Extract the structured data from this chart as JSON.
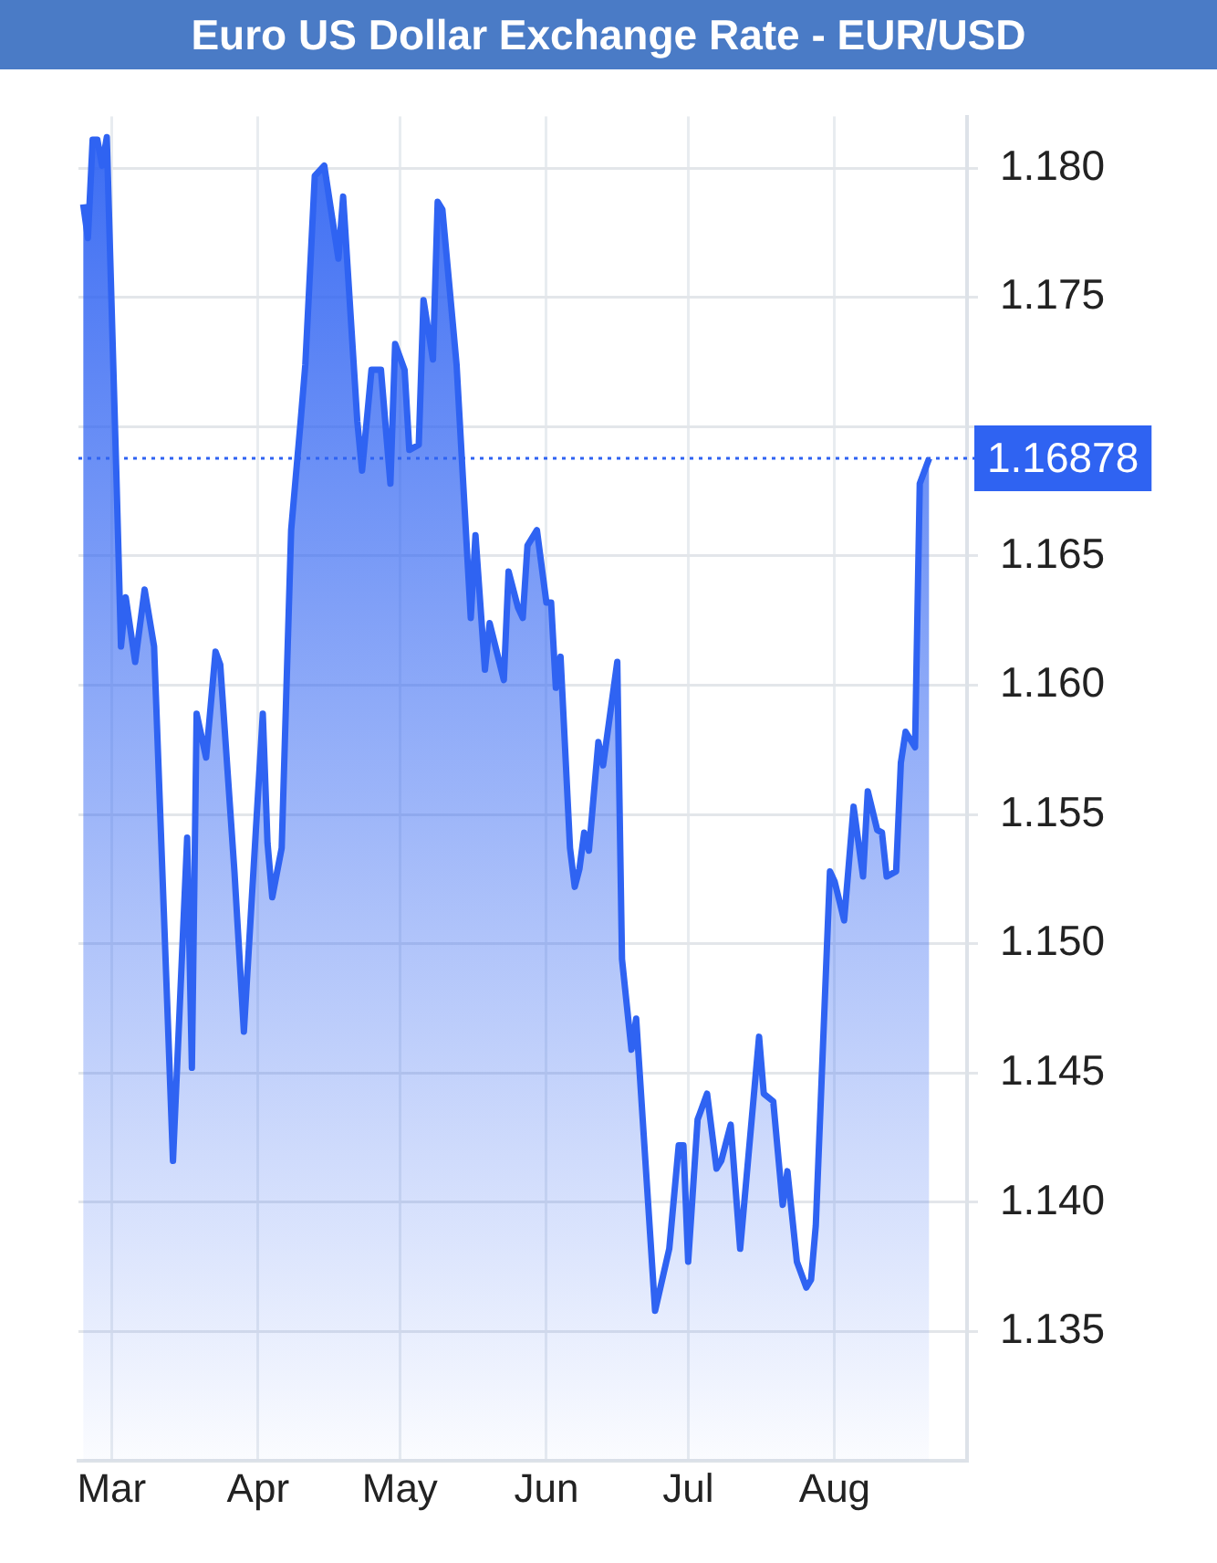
{
  "chart_data": {
    "type": "area",
    "title": "Euro US Dollar Exchange Rate - EUR/USD",
    "x": [
      "--02-23",
      "--02-24",
      "--02-25",
      "--02-26",
      "--02-27",
      "--02-28",
      "--03-02",
      "--03-03",
      "--03-04",
      "--03-06",
      "--03-08",
      "--03-10",
      "--03-14",
      "--03-17",
      "--03-18",
      "--03-19",
      "--03-21",
      "--03-23",
      "--03-24",
      "--03-27",
      "--03-29",
      "--04-02",
      "--04-03",
      "--04-04",
      "--04-06",
      "--04-08",
      "--04-10",
      "--04-11",
      "--04-13",
      "--04-15",
      "--04-18",
      "--04-19",
      "--04-22",
      "--04-23",
      "--04-25",
      "--04-27",
      "--04-29",
      "--04-30",
      "--05-02",
      "--05-03",
      "--05-05",
      "--05-06",
      "--05-08",
      "--05-09",
      "--05-10",
      "--05-13",
      "--05-16",
      "--05-17",
      "--05-19",
      "--05-20",
      "--05-23",
      "--05-24",
      "--05-26",
      "--05-27",
      "--05-28",
      "--05-30",
      "--06-01",
      "--06-02",
      "--06-03",
      "--06-04",
      "--06-06",
      "--06-07",
      "--06-08",
      "--06-09",
      "--06-10",
      "--06-12",
      "--06-13",
      "--06-16",
      "--06-17",
      "--06-19",
      "--06-20",
      "--06-24",
      "--06-27",
      "--06-29",
      "--06-30",
      "--07-01",
      "--07-03",
      "--07-05",
      "--07-07",
      "--07-08",
      "--07-10",
      "--07-12",
      "--07-16",
      "--07-17",
      "--07-19",
      "--07-21",
      "--07-22",
      "--07-24",
      "--07-26",
      "--07-27",
      "--07-28",
      "--07-31",
      "--08-01",
      "--08-03",
      "--08-05",
      "--08-07",
      "--08-08",
      "--08-10",
      "--08-11",
      "--08-12",
      "--08-14",
      "--08-15",
      "--08-16",
      "--08-18",
      "--08-19",
      "--08-21"
    ],
    "series": [
      {
        "color": "#2f63f2",
        "values": [
          1.1786,
          1.1773,
          1.1811,
          1.1811,
          1.1801,
          1.1812,
          1.1683,
          1.1615,
          1.1634,
          1.1609,
          1.1637,
          1.1615,
          1.1416,
          1.1541,
          1.1452,
          1.1589,
          1.1572,
          1.1613,
          1.1608,
          1.1528,
          1.1466,
          1.1589,
          1.1539,
          1.1518,
          1.1537,
          1.166,
          1.1702,
          1.1724,
          1.1797,
          1.1801,
          1.1765,
          1.1789,
          1.1702,
          1.1683,
          1.1722,
          1.1722,
          1.1678,
          1.1732,
          1.1722,
          1.1691,
          1.1693,
          1.1749,
          1.1726,
          1.1787,
          1.1784,
          1.1724,
          1.1626,
          1.1658,
          1.1606,
          1.1624,
          1.1602,
          1.1644,
          1.163,
          1.1626,
          1.1654,
          1.166,
          1.1632,
          1.1632,
          1.1599,
          1.1611,
          1.1537,
          1.1522,
          1.1529,
          1.1543,
          1.1536,
          1.1578,
          1.1569,
          1.1609,
          1.1494,
          1.1459,
          1.1471,
          1.1358,
          1.1382,
          1.1422,
          1.1422,
          1.1377,
          1.1432,
          1.1442,
          1.1413,
          1.1416,
          1.143,
          1.1382,
          1.1464,
          1.1442,
          1.1439,
          1.1399,
          1.1412,
          1.1377,
          1.1367,
          1.137,
          1.1391,
          1.1528,
          1.1524,
          1.1509,
          1.1553,
          1.1526,
          1.1559,
          1.1544,
          1.1543,
          1.1526,
          1.1528,
          1.157,
          1.1582,
          1.1576,
          1.1678,
          1.16878
        ]
      }
    ],
    "xlim": [
      "--02-22",
      "--08-29"
    ],
    "xticks": [
      {
        "value": "--03-01",
        "label": "Mar"
      },
      {
        "value": "--04-01",
        "label": "Apr"
      },
      {
        "value": "--05-01",
        "label": "May"
      },
      {
        "value": "--06-01",
        "label": "Jun"
      },
      {
        "value": "--07-01",
        "label": "Jul"
      },
      {
        "value": "--08-01",
        "label": "Aug"
      }
    ],
    "ylim": [
      1.13,
      1.182
    ],
    "yticks": [
      1.135,
      {
        "value": 1.14,
        "label": "1.140"
      },
      1.145,
      {
        "value": 1.15,
        "label": "1.150"
      },
      1.155,
      {
        "value": 1.16,
        "label": "1.160"
      },
      1.165,
      {
        "value": 1.17,
        "label": null
      },
      1.175,
      {
        "value": 1.18,
        "label": "1.180"
      }
    ],
    "ref_lines": [
      {
        "axis": "y",
        "value": 1.16878,
        "label": "1.16878",
        "color": "#2f63f2",
        "line_style": "dotted"
      }
    ],
    "grid": true,
    "legend": false
  }
}
